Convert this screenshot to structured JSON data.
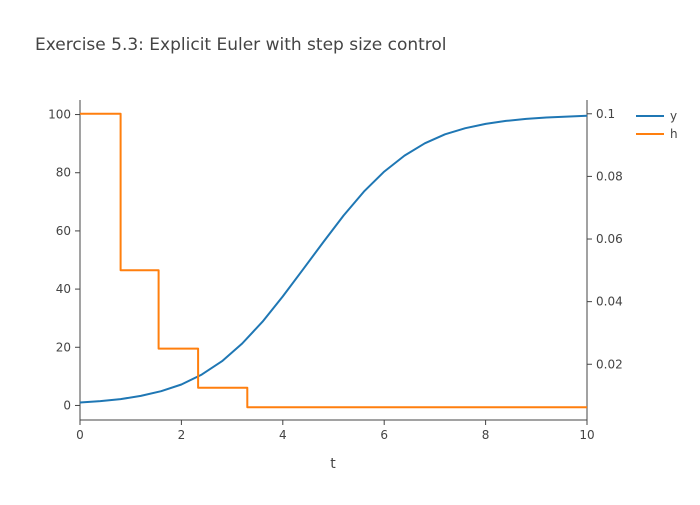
{
  "chart_data": {
    "type": "line",
    "title": "Exercise 5.3: Explicit Euler with step size control",
    "xlabel": "t",
    "ylabel": "",
    "y2label": "",
    "xlim": [
      0,
      10
    ],
    "ylim": [
      -5,
      105
    ],
    "y2lim": [
      0.0022,
      0.1044
    ],
    "x_ticks": [
      0,
      2,
      4,
      6,
      8,
      10
    ],
    "y_ticks": [
      0,
      20,
      40,
      60,
      80,
      100
    ],
    "y2_ticks": [
      0.02,
      0.04,
      0.06,
      0.08,
      0.1
    ],
    "y2_tick_labels": [
      "0.02",
      "0.04",
      "0.06",
      "0.08",
      "0.1"
    ],
    "grid": false,
    "legend_position": "top-right",
    "colors": {
      "y": "#1f77b4",
      "h": "#ff7f0e",
      "axis": "#444444"
    },
    "series": [
      {
        "name": "y",
        "axis": "y",
        "x": [
          0,
          0.4,
          0.8,
          1.2,
          1.6,
          2.0,
          2.4,
          2.8,
          3.2,
          3.6,
          4.0,
          4.4,
          4.8,
          5.2,
          5.6,
          6.0,
          6.4,
          6.8,
          7.2,
          7.6,
          8.0,
          8.4,
          8.8,
          9.2,
          9.6,
          10.0
        ],
        "values": [
          1,
          1.5,
          2.2,
          3.3,
          4.9,
          7.2,
          10.6,
          15.2,
          21.3,
          28.8,
          37.5,
          46.8,
          56.2,
          65.3,
          73.5,
          80.4,
          85.9,
          90.1,
          93.2,
          95.3,
          96.8,
          97.8,
          98.5,
          99.0,
          99.3,
          99.6
        ]
      },
      {
        "name": "h",
        "axis": "y2",
        "shape": "step",
        "x": [
          0,
          0.8,
          0.8,
          1.55,
          1.55,
          2.33,
          2.33,
          3.3,
          3.3,
          10
        ],
        "values": [
          0.1,
          0.1,
          0.05,
          0.05,
          0.025,
          0.025,
          0.0125,
          0.0125,
          0.00625,
          0.00625
        ]
      }
    ]
  }
}
